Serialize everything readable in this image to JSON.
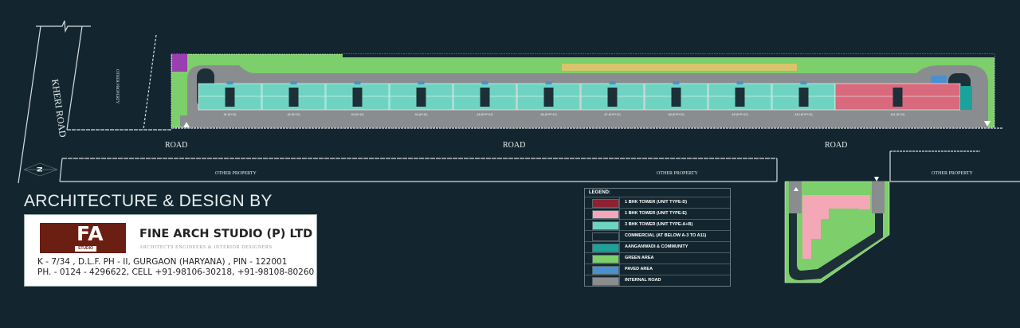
{
  "labels": {
    "kheri_road": "KHERI ROAD",
    "other_property_vertical": "OTHER PROPERTY",
    "road": [
      "ROAD",
      "ROAD",
      "ROAD"
    ],
    "other_property": [
      "OTHER PROPERTY",
      "OTHER PROPERTY",
      "OTHER PROPERTY"
    ],
    "north": "N"
  },
  "towers": [
    {
      "label": "A1 (S+12)",
      "type": "3bhk"
    },
    {
      "label": "A2 (S+12)",
      "type": "3bhk"
    },
    {
      "label": "A3 (S+12)",
      "type": "3bhk"
    },
    {
      "label": "A4 (S+12)",
      "type": "3bhk"
    },
    {
      "label": "A5 (S+P+12)",
      "type": "3bhk"
    },
    {
      "label": "A6 (S+P+12)",
      "type": "3bhk"
    },
    {
      "label": "A7 (S+P+12)",
      "type": "3bhk"
    },
    {
      "label": "A8 (S+P+12)",
      "type": "3bhk"
    },
    {
      "label": "A9 (S+P+12)",
      "type": "3bhk"
    },
    {
      "label": "A10 (S+P+12)",
      "type": "3bhk"
    },
    {
      "label": "A11 (S+12)",
      "type": "1bhk"
    }
  ],
  "credits": {
    "title": "ARCHITECTURE & DESIGN BY",
    "logo_text": "FA",
    "logo_sub": "STUDIO",
    "firm_name": "FINE ARCH STUDIO (P) LTD",
    "tagline": "ARCHITECTS  ENGINEERS  &  INTERIOR  DESIGNERS",
    "address": "K - 7/34 ,  D.L.F.  PH - II,  GURGAON (HARYANA) ,  PIN - 122001",
    "phone": "PH. - 0124 - 4296622,  CELL +91-98106-30218, +91-98108-80260"
  },
  "legend": {
    "title": "LEGEND:",
    "items": [
      {
        "label": "1 BHK TOWER (UNIT TYPE-D)",
        "color": "#8c2332"
      },
      {
        "label": "1 BHK TOWER (UNIT TYPE-E)",
        "color": "#f4a7b6"
      },
      {
        "label": "3 BHK TOWER (UNIT TYPE-A+B)",
        "color": "#6fd3c2"
      },
      {
        "label": "COMMERCIAL (AT BELOW A-3 TO A11)",
        "color": "#13262f"
      },
      {
        "label": "AANGANWADI & COMMUNITY",
        "color": "#1aa39a"
      },
      {
        "label": "GREEN AREA",
        "color": "#7ccf6a"
      },
      {
        "label": "PAVED AREA",
        "color": "#4a90cf"
      },
      {
        "label": "INTERNAL ROAD",
        "color": "#8a8d8f"
      }
    ]
  },
  "colors": {
    "background": "#13262f",
    "green": "#7ccf6a",
    "road": "#8a8d8f",
    "teal": "#6fd3c2",
    "pink": "#d9697c",
    "light_pink": "#f4a7b6",
    "purple": "#9a3fb0",
    "yellow": "#d6c56a",
    "paved": "#4a90cf",
    "community": "#1aa39a"
  }
}
